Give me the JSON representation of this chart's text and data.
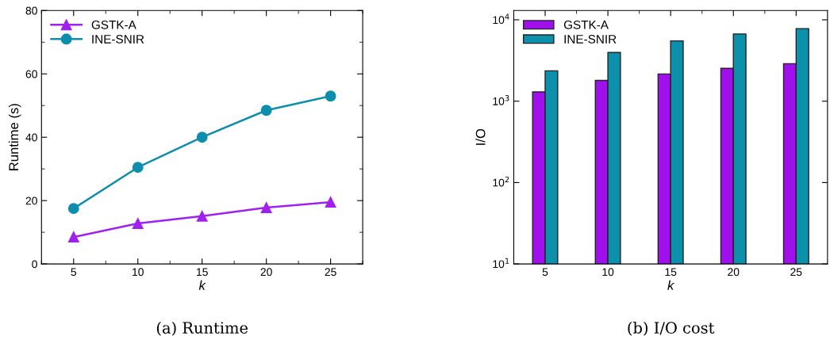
{
  "chart_data": [
    {
      "type": "line",
      "title": "(a) Runtime",
      "xlabel": "k",
      "ylabel": "Runtime (s)",
      "x": [
        5,
        10,
        15,
        20,
        25
      ],
      "series": [
        {
          "name": "GSTK-A",
          "color": "#a020f0",
          "marker": "triangle",
          "values": [
            8.5,
            12.8,
            15.1,
            17.8,
            19.5
          ]
        },
        {
          "name": "INE-SNIR",
          "color": "#0e8ead",
          "marker": "circle",
          "values": [
            17.5,
            30.5,
            40,
            48.5,
            53
          ]
        }
      ],
      "xlim": [
        2.5,
        27.5
      ],
      "xticks": [
        5,
        10,
        15,
        20,
        25
      ],
      "ylim": [
        0,
        80
      ],
      "yticks": [
        0,
        20,
        40,
        60,
        80
      ],
      "grid": false,
      "legend": "top left",
      "line_style": "solid"
    },
    {
      "type": "bar",
      "title": "(b) I/O cost",
      "xlabel": "k",
      "ylabel": "I/O",
      "categories": [
        "5",
        "10",
        "15",
        "20",
        "25"
      ],
      "series": [
        {
          "name": "GSTK-A",
          "color": "#a010ec",
          "values": [
            1300,
            1800,
            2160,
            2530,
            2890
          ]
        },
        {
          "name": "INE-SNIR",
          "color": "#0c90ab",
          "values": [
            2360,
            3960,
            5500,
            6700,
            7800
          ]
        }
      ],
      "log": true,
      "ylim": [
        10,
        13000
      ],
      "yticks": [
        {
          "value": 10,
          "label": "10$^{1}$"
        },
        {
          "value": 100,
          "label": "10$^{2}$"
        },
        {
          "value": 1000,
          "label": "10$^{3}$"
        },
        {
          "value": 10000,
          "label": "10$^{4}$"
        }
      ],
      "grid": false,
      "legend": "top left"
    }
  ]
}
